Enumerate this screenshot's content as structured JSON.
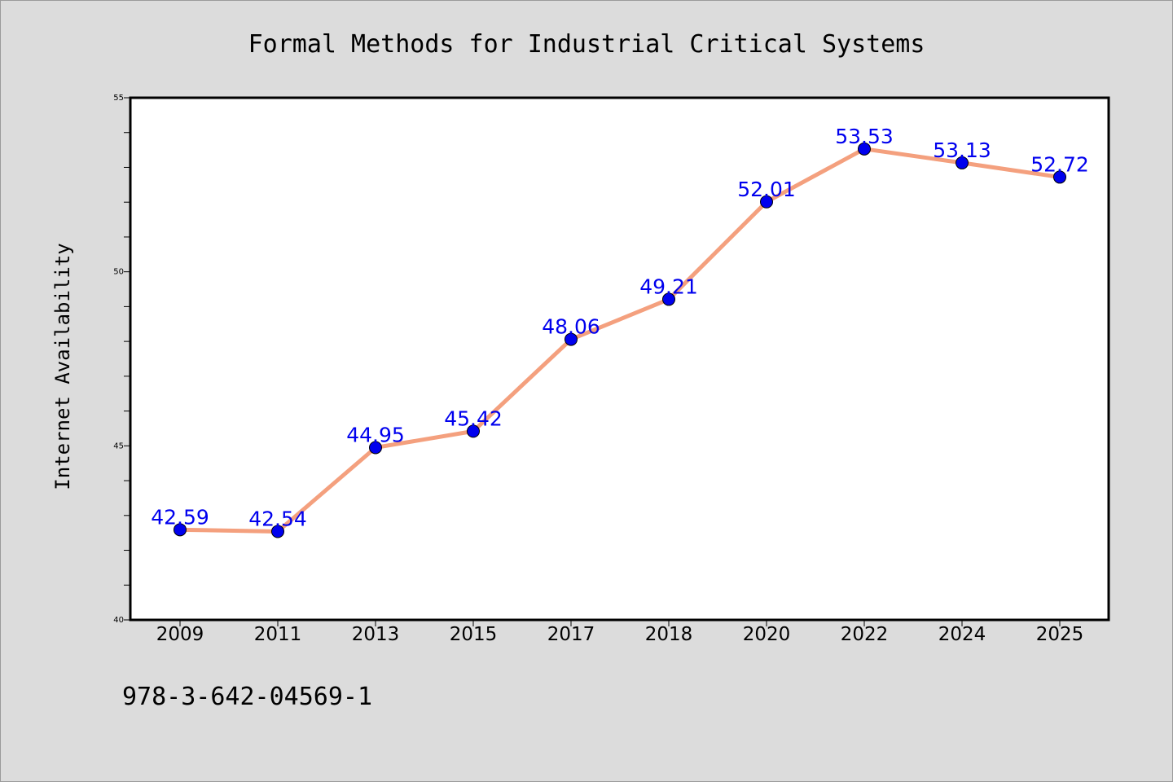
{
  "chart_data": {
    "type": "line",
    "title": "Formal Methods for Industrial Critical Systems",
    "xlabel": "",
    "ylabel": "Internet Availability",
    "categories": [
      "2009",
      "2011",
      "2013",
      "2015",
      "2017",
      "2018",
      "2020",
      "2022",
      "2024",
      "2025"
    ],
    "series": [
      {
        "values": [
          42.59,
          42.54,
          44.95,
          45.42,
          48.06,
          49.21,
          52.01,
          53.53,
          53.13,
          52.72
        ],
        "labels": [
          "42.59",
          "42.54",
          "44.95",
          "45.42",
          "48.06",
          "49.21",
          "52.01",
          "53.53",
          "53.13",
          "52.72"
        ],
        "line_color": "#f4a07e",
        "marker_color": "#0000ee"
      }
    ],
    "ylim": [
      40,
      55
    ],
    "yticks": [
      "40",
      "45",
      "50",
      "55"
    ],
    "grid": false,
    "legend": "none",
    "label_color": "#0000ee"
  },
  "footer": {
    "text": "978-3-642-04569-1"
  }
}
